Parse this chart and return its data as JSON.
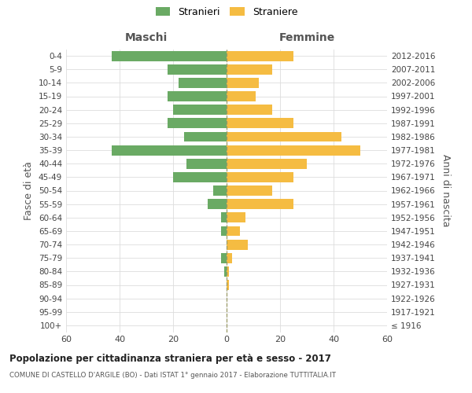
{
  "age_groups": [
    "100+",
    "95-99",
    "90-94",
    "85-89",
    "80-84",
    "75-79",
    "70-74",
    "65-69",
    "60-64",
    "55-59",
    "50-54",
    "45-49",
    "40-44",
    "35-39",
    "30-34",
    "25-29",
    "20-24",
    "15-19",
    "10-14",
    "5-9",
    "0-4"
  ],
  "birth_years": [
    "≤ 1916",
    "1917-1921",
    "1922-1926",
    "1927-1931",
    "1932-1936",
    "1937-1941",
    "1942-1946",
    "1947-1951",
    "1952-1956",
    "1957-1961",
    "1962-1966",
    "1967-1971",
    "1972-1976",
    "1977-1981",
    "1982-1986",
    "1987-1991",
    "1992-1996",
    "1997-2001",
    "2002-2006",
    "2007-2011",
    "2012-2016"
  ],
  "maschi": [
    0,
    0,
    0,
    0,
    1,
    2,
    0,
    2,
    2,
    7,
    5,
    20,
    15,
    43,
    16,
    22,
    20,
    22,
    18,
    22,
    43
  ],
  "femmine": [
    0,
    0,
    0,
    1,
    1,
    2,
    8,
    5,
    7,
    25,
    17,
    25,
    30,
    50,
    43,
    25,
    17,
    11,
    12,
    17,
    25
  ],
  "color_maschi": "#6aaa64",
  "color_femmine": "#f5bc42",
  "title": "Popolazione per cittadinanza straniera per età e sesso - 2017",
  "subtitle": "COMUNE DI CASTELLO D'ARGILE (BO) - Dati ISTAT 1° gennaio 2017 - Elaborazione TUTTITALIA.IT",
  "ylabel_left": "Fasce di età",
  "ylabel_right": "Anni di nascita",
  "header_maschi": "Maschi",
  "header_femmine": "Femmine",
  "legend_maschi": "Stranieri",
  "legend_femmine": "Straniere",
  "xlim": 60,
  "bg_color": "#ffffff",
  "grid_color": "#dddddd",
  "dashed_line_color": "#999966"
}
